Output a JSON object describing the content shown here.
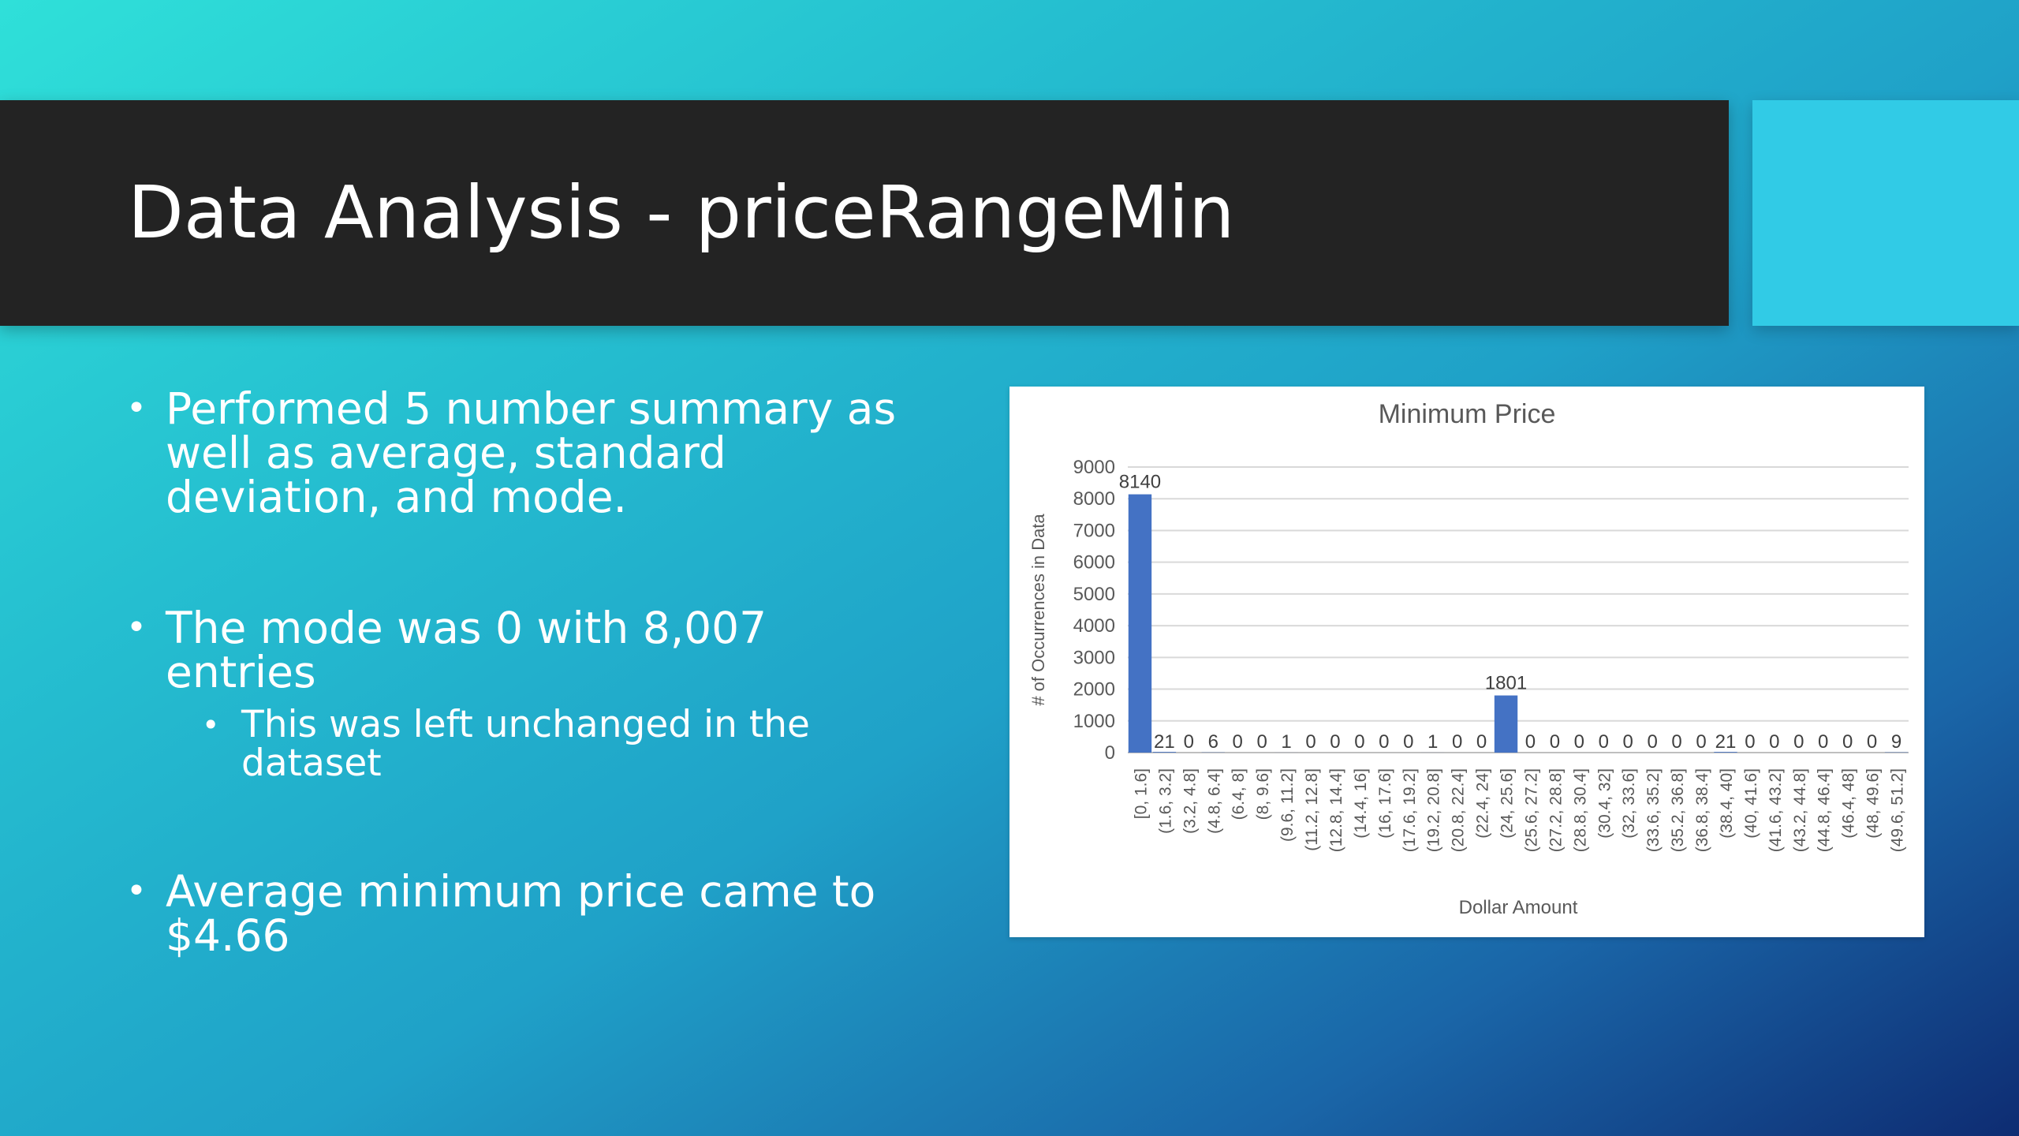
{
  "slide": {
    "title": "Data Analysis - priceRangeMin",
    "bullets": [
      {
        "text": "Performed 5 number summary as well as average, standard deviation, and mode."
      },
      {
        "text": "The mode was 0 with 8,007 entries",
        "sub": [
          "This was left unchanged in the dataset"
        ]
      },
      {
        "text": "Average minimum price came to $4.66"
      }
    ],
    "bullet_glyph": "•"
  },
  "colors": {
    "title_bar": "#232323",
    "accent_block": "#31cbe6",
    "bar": "#4472c4"
  },
  "chart_data": {
    "type": "bar",
    "title": "Minimum Price",
    "xlabel": "Dollar Amount",
    "ylabel": "# of Occurrences in Data",
    "ylim": [
      0,
      9000
    ],
    "yticks": [
      0,
      1000,
      2000,
      3000,
      4000,
      5000,
      6000,
      7000,
      8000,
      9000
    ],
    "grid": true,
    "categories": [
      "[0, 1.6]",
      "(1.6, 3.2]",
      "(3.2, 4.8]",
      "(4.8, 6.4]",
      "(6.4, 8]",
      "(8, 9.6]",
      "(9.6, 11.2]",
      "(11.2, 12.8]",
      "(12.8, 14.4]",
      "(14.4, 16]",
      "(16, 17.6]",
      "(17.6, 19.2]",
      "(19.2, 20.8]",
      "(20.8, 22.4]",
      "(22.4, 24]",
      "(24, 25.6]",
      "(25.6, 27.2]",
      "(27.2, 28.8]",
      "(28.8, 30.4]",
      "(30.4, 32]",
      "(32, 33.6]",
      "(33.6, 35.2]",
      "(35.2, 36.8]",
      "(36.8, 38.4]",
      "(38.4, 40]",
      "(40, 41.6]",
      "(41.6, 43.2]",
      "(43.2, 44.8]",
      "(44.8, 46.4]",
      "(46.4, 48]",
      "(48, 49.6]",
      "(49.6, 51.2]"
    ],
    "values": [
      8140,
      21,
      0,
      6,
      0,
      0,
      1,
      0,
      0,
      0,
      0,
      0,
      1,
      0,
      0,
      1801,
      0,
      0,
      0,
      0,
      0,
      0,
      0,
      0,
      21,
      0,
      0,
      0,
      0,
      0,
      0,
      9
    ]
  }
}
